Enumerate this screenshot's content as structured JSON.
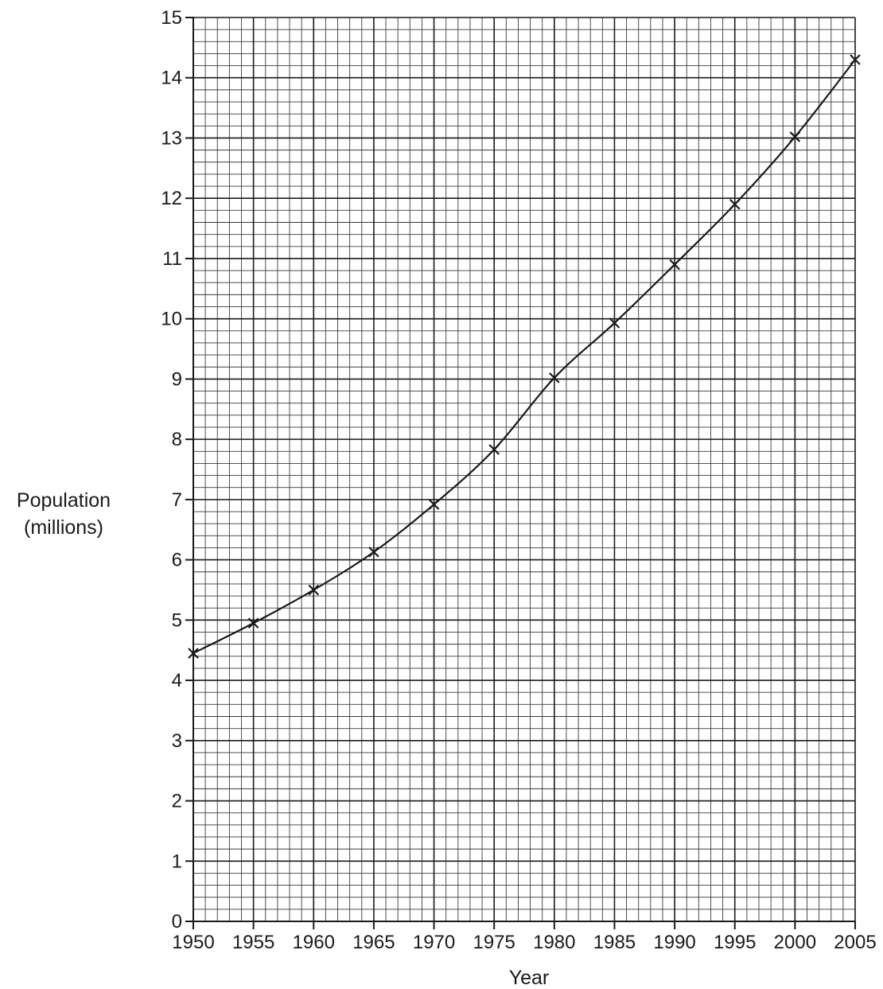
{
  "chart_data": {
    "type": "line",
    "title": "",
    "xlabel": "Year",
    "ylabel": [
      "Population",
      "(millions)"
    ],
    "xlim": [
      1950,
      2005
    ],
    "ylim": [
      0,
      15
    ],
    "x_ticks": [
      "1950",
      "1955",
      "1960",
      "1965",
      "1970",
      "1975",
      "1980",
      "1985",
      "1990",
      "1995",
      "2000",
      "2005"
    ],
    "y_ticks": [
      "0",
      "1",
      "2",
      "3",
      "4",
      "5",
      "6",
      "7",
      "8",
      "9",
      "10",
      "11",
      "12",
      "13",
      "14",
      "15"
    ],
    "grid": true,
    "marker": "x",
    "colors": {
      "line": "#1a1a1a",
      "major_grid": "#1a1a1a",
      "minor_grid": "#3a3a3a"
    },
    "series": [
      {
        "x": [
          1950,
          1955,
          1960,
          1965,
          1970,
          1975,
          1980,
          1985,
          1990,
          1995,
          2000,
          2005
        ],
        "values": [
          4.45,
          4.95,
          5.5,
          6.13,
          6.92,
          7.83,
          9.02,
          9.93,
          10.9,
          11.9,
          13.02,
          14.3
        ]
      }
    ]
  }
}
